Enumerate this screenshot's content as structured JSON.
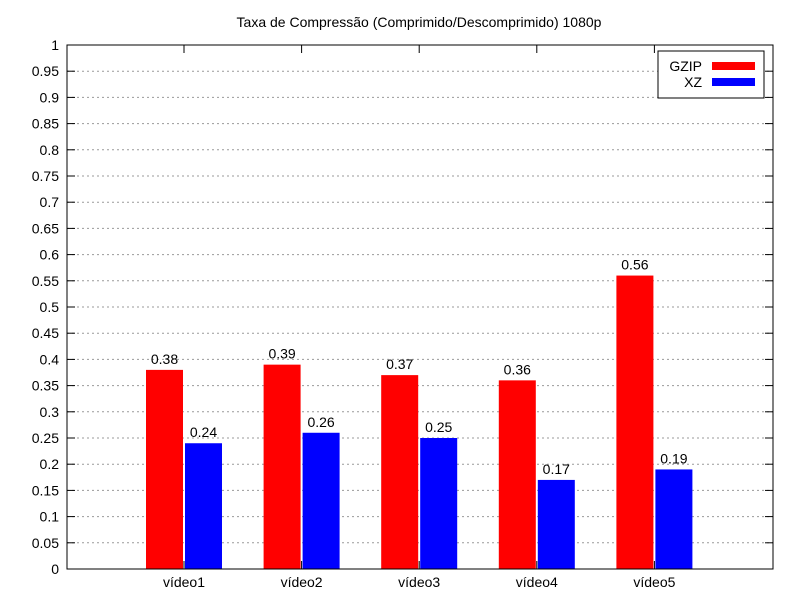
{
  "chart_data": {
    "type": "bar",
    "title": "Taxa de Compressão (Comprimido/Descomprimido) 1080p",
    "xlabel": "",
    "ylabel": "",
    "categories": [
      "vídeo1",
      "vídeo2",
      "vídeo3",
      "vídeo4",
      "vídeo5"
    ],
    "series": [
      {
        "name": "GZIP",
        "color": "#ff0000",
        "values": [
          0.38,
          0.39,
          0.37,
          0.36,
          0.56
        ]
      },
      {
        "name": "XZ",
        "color": "#0000ff",
        "values": [
          0.24,
          0.26,
          0.25,
          0.17,
          0.19
        ]
      }
    ],
    "ylim": [
      0,
      1
    ],
    "yticks": [
      "0",
      "0.05",
      "0.1",
      "0.15",
      "0.2",
      "0.25",
      "0.3",
      "0.35",
      "0.4",
      "0.45",
      "0.5",
      "0.55",
      "0.6",
      "0.65",
      "0.7",
      "0.75",
      "0.8",
      "0.85",
      "0.9",
      "0.95",
      "1"
    ],
    "grid": true,
    "legend_position": "top-right"
  }
}
